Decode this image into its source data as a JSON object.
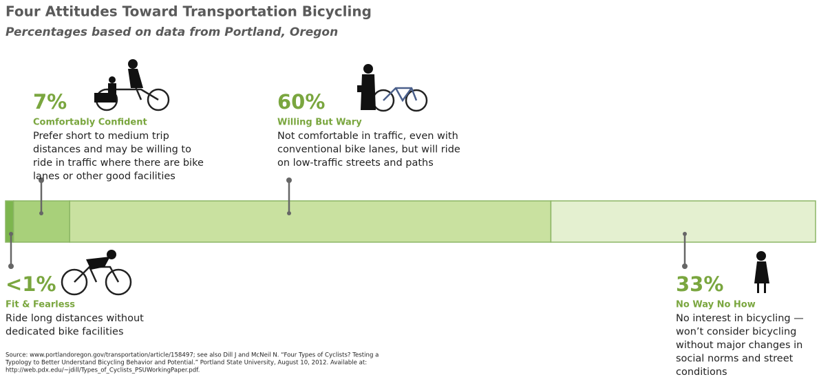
{
  "chart_data": {
    "type": "bar",
    "title": "Four Attitudes Toward Transportation Bicycling",
    "subtitle": "Percentages based on data from Portland, Oregon",
    "categories": [
      "Fit & Fearless",
      "Comfortably Confident",
      "Willing But Wary",
      "No Way No How"
    ],
    "values": [
      1,
      7,
      60,
      33
    ],
    "value_labels": [
      "<1%",
      "7%",
      "60%",
      "33%"
    ],
    "colors": [
      "#7db64e",
      "#a8d07a",
      "#c9e1a0",
      "#e4f0d0"
    ],
    "descriptions": [
      [
        "Ride long distances without",
        "dedicated bike facilities"
      ],
      [
        "Prefer short to medium trip",
        "distances and may be willing to",
        "ride in traffic where there are bike",
        "lanes or other good facilities"
      ],
      [
        "Not comfortable in traffic, even with",
        "conventional bike lanes, but will ride",
        "on low-traffic streets and paths"
      ],
      [
        "No interest in bicycling —",
        "won’t consider bicycling",
        "without major changes in",
        "social norms and street",
        "conditions"
      ]
    ],
    "source": [
      "Source: www.portlandoregon.gov/transportation/article/158497; see also Dill J and McNeil N. “Four Types of Cyclists? Testing a",
      "Typology to Better Understand Bicycling Behavior and Potential.” Portland State University, August 10, 2012.  Available at:",
      "http://web.pdx.edu/~jdill/Types_of_Cyclists_PSUWorkingPaper.pdf."
    ]
  }
}
